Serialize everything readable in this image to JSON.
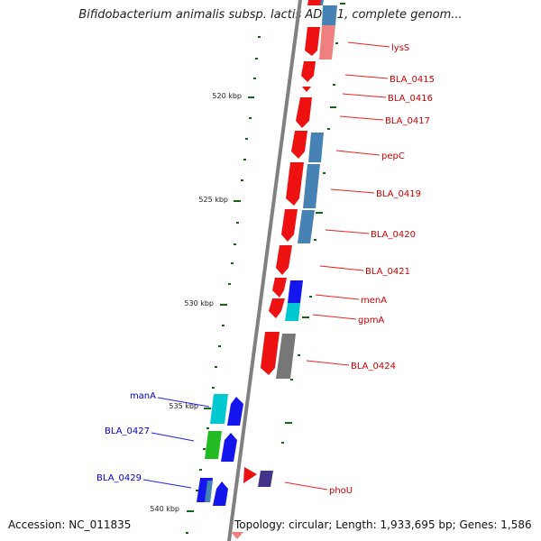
{
  "title": "Bifidobacterium animalis subsp. lactis AD011, complete genom...",
  "accession": "Accession: NC_011835",
  "topology": "Topology: circular; Length: 1,933,695 bp; Genes: 1,586",
  "axis": {
    "ticks": [
      {
        "label": "520 kbp",
        "kbp": 520
      },
      {
        "label": "525 kbp",
        "kbp": 525
      },
      {
        "label": "530 kbp",
        "kbp": 530
      },
      {
        "label": "535 kbp",
        "kbp": 535
      },
      {
        "label": "540 kbp",
        "kbp": 540
      }
    ]
  },
  "colors": {
    "gene_red": "#ee1111",
    "gene_pink": "#f08080",
    "gene_steel": "#4682b4",
    "gene_blue": "#1515ee",
    "gene_cyan": "#00c8d0",
    "gene_green": "#22bb22",
    "gene_gray": "#777777",
    "gene_purple": "#443388",
    "label_forward": "#cc0000",
    "label_reverse": "#0000cc",
    "backbone": "#808080",
    "tick": "#116611"
  },
  "genes_forward": [
    {
      "label": "lysS"
    },
    {
      "label": "BLA_0415"
    },
    {
      "label": "BLA_0416"
    },
    {
      "label": "BLA_0417"
    },
    {
      "label": "pepC"
    },
    {
      "label": "BLA_0419"
    },
    {
      "label": "BLA_0420"
    },
    {
      "label": "BLA_0421"
    },
    {
      "label": "menA"
    },
    {
      "label": "gpmA"
    },
    {
      "label": "BLA_0424"
    },
    {
      "label": "phoU"
    }
  ],
  "genes_reverse": [
    {
      "label": "manA"
    },
    {
      "label": "BLA_0427"
    },
    {
      "label": "BLA_0429"
    }
  ]
}
